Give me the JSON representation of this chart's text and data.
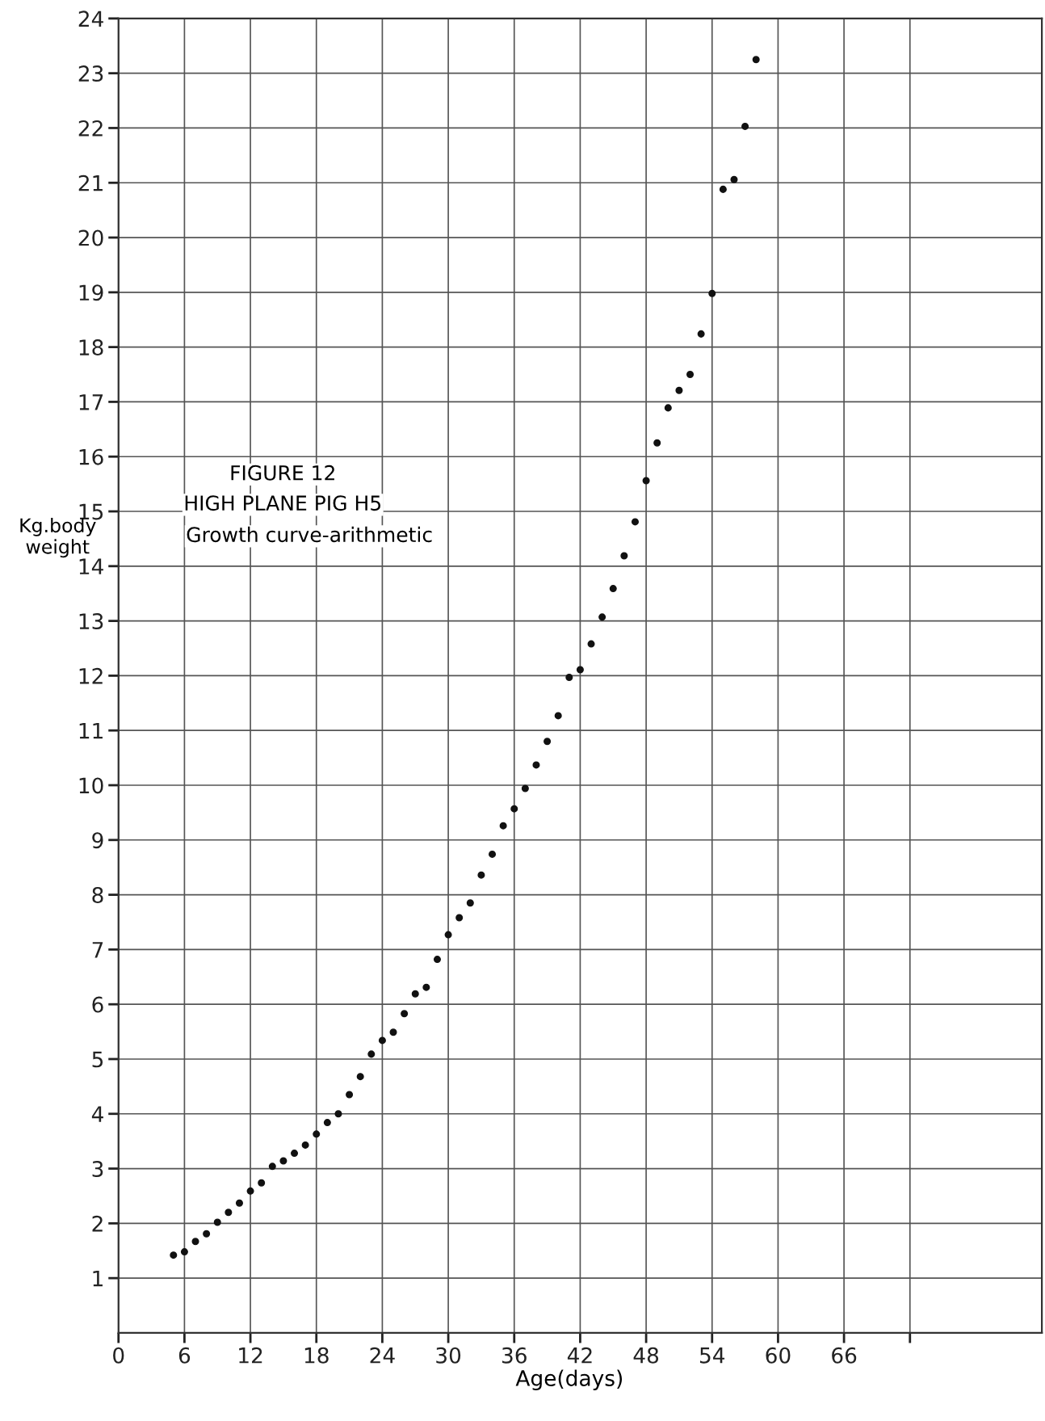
{
  "chart_data": {
    "type": "scatter",
    "title": "FIGURE 12",
    "subtitle": "HIGH PLANE PIG H5",
    "annotations": [
      "Growth curve-arithmetic"
    ],
    "xlabel": "Age(days)",
    "ylabel": "Kg.body\nweight",
    "x": [
      5,
      6,
      7,
      8,
      9,
      10,
      11,
      12,
      13,
      14,
      15,
      16,
      17,
      18,
      19,
      20,
      21,
      22,
      23,
      24,
      25,
      26,
      27,
      28,
      29,
      30,
      31,
      32,
      33,
      34,
      35,
      36,
      37,
      38,
      39,
      40,
      41,
      42,
      43,
      44,
      45,
      46,
      47,
      48,
      49,
      50,
      51,
      52,
      53,
      54,
      55,
      56,
      57,
      58
    ],
    "series": [
      {
        "color": "#111111",
        "values": [
          1.42,
          1.48,
          1.67,
          1.81,
          2.02,
          2.2,
          2.37,
          2.59,
          2.74,
          3.04,
          3.14,
          3.28,
          3.43,
          3.63,
          3.84,
          4.0,
          4.35,
          4.68,
          5.09,
          5.34,
          5.49,
          5.83,
          6.19,
          6.31,
          6.82,
          7.27,
          7.58,
          7.85,
          8.36,
          8.74,
          9.26,
          9.57,
          9.94,
          10.37,
          10.8,
          11.27,
          11.97,
          12.11,
          12.58,
          13.07,
          13.59,
          14.19,
          14.81,
          15.56,
          16.25,
          16.89,
          17.21,
          17.5,
          18.24,
          18.98,
          20.88,
          21.06,
          22.03,
          23.25
        ]
      }
    ],
    "marker": "circle",
    "xlim": [
      0,
      84
    ],
    "ylim": [
      0,
      24
    ],
    "xticks": [
      0,
      6,
      12,
      18,
      24,
      30,
      36,
      42,
      48,
      54,
      60,
      66,
      {
        "value": 72,
        "label": null
      }
    ],
    "yticks": [
      1,
      2,
      3,
      4,
      5,
      6,
      7,
      8,
      9,
      10,
      11,
      12,
      13,
      14,
      15,
      16,
      17,
      18,
      19,
      20,
      21,
      22,
      23,
      24
    ],
    "grid": true
  }
}
